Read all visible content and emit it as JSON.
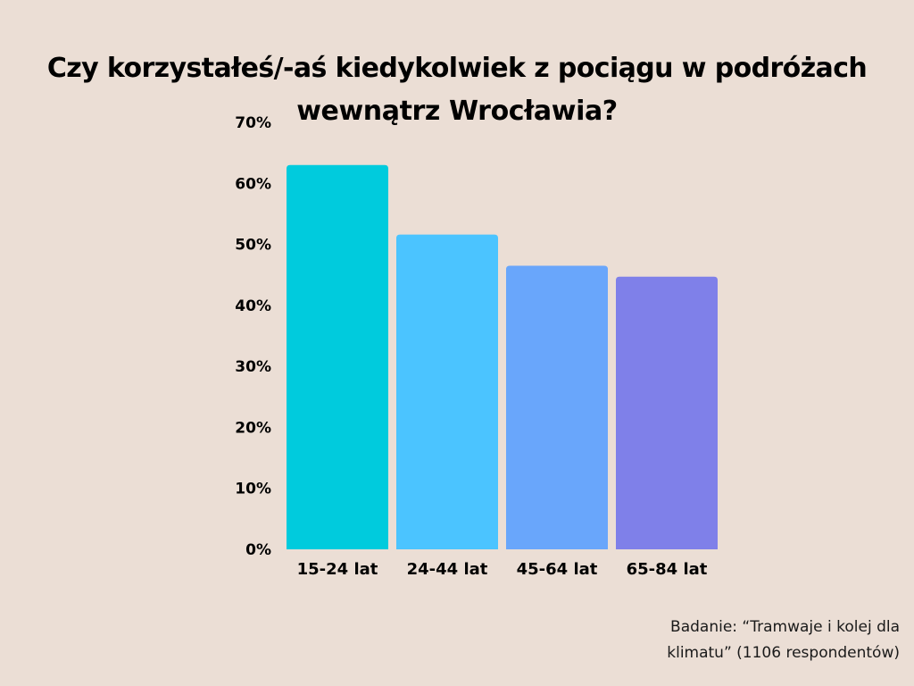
{
  "title": {
    "line1": "Czy korzystałeś/-aś kiedykolwiek z pociągu w podróżach",
    "line2": "wewnątrz Wrocławia?"
  },
  "source": {
    "line1": "Badanie: “Tramwaje i kolej dla",
    "line2": "klimatu” (1106 respondentów)"
  },
  "chart_data": {
    "type": "bar",
    "title": "Czy korzystałeś/-aś kiedykolwiek z pociągu w podróżach wewnątrz Wrocławia?",
    "xlabel": "",
    "ylabel": "",
    "categories": [
      "15-24 lat",
      "24-44 lat",
      "45-64 lat",
      "65-84 lat"
    ],
    "values": [
      63,
      51.6,
      46.5,
      44.7
    ],
    "ylim": [
      0,
      70
    ],
    "yticks": [
      0,
      10,
      20,
      30,
      40,
      50,
      60,
      70
    ],
    "ytick_labels": [
      "0%",
      "10%",
      "20%",
      "30%",
      "40%",
      "50%",
      "60%",
      "70%"
    ],
    "colors": [
      "#00cbdd",
      "#4bc4ff",
      "#69a6fb",
      "#7f80e9"
    ],
    "grid": false,
    "legend": "none"
  }
}
